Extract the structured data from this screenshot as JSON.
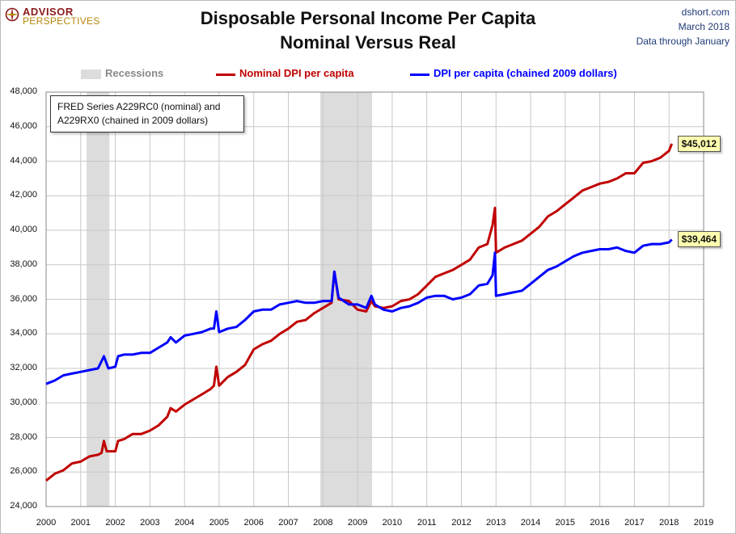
{
  "brand": {
    "line1": "ADVISOR",
    "line2": "PERSPECTIVES"
  },
  "source": {
    "site": "dshort.com",
    "date": "March 2018",
    "through": "Data through January"
  },
  "colors": {
    "nominal": "#c00000",
    "real": "#0000ff",
    "recession": "#dcdcdc",
    "grid": "#c8c8c8"
  },
  "chart_data": {
    "type": "line",
    "title": "Disposable Personal Income Per Capita",
    "subtitle": "Nominal Versus Real",
    "annotation": "FRED Series A229RC0 (nominal) and A229RX0 (chained in 2009 dollars)",
    "annotation_lines": [
      "FRED Series A229RC0 (nominal) and",
      "A229RX0 (chained in 2009 dollars)"
    ],
    "legend": {
      "placement": "top",
      "recessions": "Recessions",
      "nominal": "Nominal DPI per capita",
      "real": "DPI per capita (chained 2009 dollars)"
    },
    "xlim": [
      2000,
      2019
    ],
    "ylim": [
      24000,
      48000
    ],
    "x_ticks": [
      "2000",
      "2001",
      "2002",
      "2003",
      "2004",
      "2005",
      "2006",
      "2007",
      "2008",
      "2009",
      "2010",
      "2011",
      "2012",
      "2013",
      "2014",
      "2015",
      "2016",
      "2017",
      "2018",
      "2019"
    ],
    "y_ticks": [
      "24,000",
      "26,000",
      "28,000",
      "30,000",
      "32,000",
      "34,000",
      "36,000",
      "38,000",
      "40,000",
      "42,000",
      "44,000",
      "46,000",
      "48,000"
    ],
    "grid": true,
    "recessions": [
      {
        "start": 2001.17,
        "end": 2001.83
      },
      {
        "start": 2007.92,
        "end": 2009.42
      }
    ],
    "series": [
      {
        "name": "Nominal DPI per capita",
        "key": "nominal",
        "end_label": "$45,012",
        "points": [
          [
            2000.0,
            25500
          ],
          [
            2000.25,
            25900
          ],
          [
            2000.5,
            26100
          ],
          [
            2000.75,
            26500
          ],
          [
            2001.0,
            26600
          ],
          [
            2001.25,
            26900
          ],
          [
            2001.5,
            27000
          ],
          [
            2001.6,
            27100
          ],
          [
            2001.67,
            27800
          ],
          [
            2001.75,
            27200
          ],
          [
            2002.0,
            27200
          ],
          [
            2002.08,
            27800
          ],
          [
            2002.25,
            27900
          ],
          [
            2002.5,
            28200
          ],
          [
            2002.75,
            28200
          ],
          [
            2003.0,
            28400
          ],
          [
            2003.25,
            28700
          ],
          [
            2003.5,
            29200
          ],
          [
            2003.6,
            29700
          ],
          [
            2003.75,
            29500
          ],
          [
            2004.0,
            29900
          ],
          [
            2004.25,
            30200
          ],
          [
            2004.5,
            30500
          ],
          [
            2004.75,
            30800
          ],
          [
            2004.85,
            31000
          ],
          [
            2004.92,
            32100
          ],
          [
            2005.0,
            31000
          ],
          [
            2005.25,
            31500
          ],
          [
            2005.5,
            31800
          ],
          [
            2005.75,
            32200
          ],
          [
            2006.0,
            33100
          ],
          [
            2006.25,
            33400
          ],
          [
            2006.5,
            33600
          ],
          [
            2006.75,
            34000
          ],
          [
            2007.0,
            34300
          ],
          [
            2007.25,
            34700
          ],
          [
            2007.5,
            34800
          ],
          [
            2007.75,
            35200
          ],
          [
            2008.0,
            35500
          ],
          [
            2008.25,
            35800
          ],
          [
            2008.33,
            37600
          ],
          [
            2008.45,
            36000
          ],
          [
            2008.75,
            35900
          ],
          [
            2009.0,
            35400
          ],
          [
            2009.25,
            35300
          ],
          [
            2009.4,
            35900
          ],
          [
            2009.5,
            35600
          ],
          [
            2009.75,
            35500
          ],
          [
            2010.0,
            35600
          ],
          [
            2010.25,
            35900
          ],
          [
            2010.5,
            36000
          ],
          [
            2010.75,
            36300
          ],
          [
            2011.0,
            36800
          ],
          [
            2011.25,
            37300
          ],
          [
            2011.5,
            37500
          ],
          [
            2011.75,
            37700
          ],
          [
            2012.0,
            38000
          ],
          [
            2012.25,
            38300
          ],
          [
            2012.5,
            39000
          ],
          [
            2012.75,
            39200
          ],
          [
            2012.9,
            40300
          ],
          [
            2012.97,
            41300
          ],
          [
            2013.0,
            38700
          ],
          [
            2013.25,
            39000
          ],
          [
            2013.5,
            39200
          ],
          [
            2013.75,
            39400
          ],
          [
            2014.0,
            39800
          ],
          [
            2014.25,
            40200
          ],
          [
            2014.5,
            40800
          ],
          [
            2014.75,
            41100
          ],
          [
            2015.0,
            41500
          ],
          [
            2015.25,
            41900
          ],
          [
            2015.5,
            42300
          ],
          [
            2015.75,
            42500
          ],
          [
            2016.0,
            42700
          ],
          [
            2016.25,
            42800
          ],
          [
            2016.5,
            43000
          ],
          [
            2016.75,
            43300
          ],
          [
            2017.0,
            43300
          ],
          [
            2017.25,
            43900
          ],
          [
            2017.5,
            44000
          ],
          [
            2017.75,
            44200
          ],
          [
            2018.0,
            44600
          ],
          [
            2018.08,
            45012
          ]
        ]
      },
      {
        "name": "DPI per capita (chained 2009 dollars)",
        "key": "real",
        "end_label": "$39,464",
        "points": [
          [
            2000.0,
            31100
          ],
          [
            2000.25,
            31300
          ],
          [
            2000.5,
            31600
          ],
          [
            2000.75,
            31700
          ],
          [
            2001.0,
            31800
          ],
          [
            2001.25,
            31900
          ],
          [
            2001.5,
            32000
          ],
          [
            2001.67,
            32700
          ],
          [
            2001.8,
            32000
          ],
          [
            2002.0,
            32100
          ],
          [
            2002.08,
            32700
          ],
          [
            2002.25,
            32800
          ],
          [
            2002.5,
            32800
          ],
          [
            2002.75,
            32900
          ],
          [
            2003.0,
            32900
          ],
          [
            2003.25,
            33200
          ],
          [
            2003.5,
            33500
          ],
          [
            2003.6,
            33800
          ],
          [
            2003.75,
            33500
          ],
          [
            2004.0,
            33900
          ],
          [
            2004.25,
            34000
          ],
          [
            2004.5,
            34100
          ],
          [
            2004.75,
            34300
          ],
          [
            2004.85,
            34300
          ],
          [
            2004.92,
            35300
          ],
          [
            2005.0,
            34100
          ],
          [
            2005.25,
            34300
          ],
          [
            2005.5,
            34400
          ],
          [
            2005.75,
            34800
          ],
          [
            2006.0,
            35300
          ],
          [
            2006.25,
            35400
          ],
          [
            2006.5,
            35400
          ],
          [
            2006.75,
            35700
          ],
          [
            2007.0,
            35800
          ],
          [
            2007.25,
            35900
          ],
          [
            2007.5,
            35800
          ],
          [
            2007.75,
            35800
          ],
          [
            2008.0,
            35900
          ],
          [
            2008.25,
            35900
          ],
          [
            2008.33,
            37600
          ],
          [
            2008.45,
            36100
          ],
          [
            2008.75,
            35700
          ],
          [
            2009.0,
            35700
          ],
          [
            2009.25,
            35500
          ],
          [
            2009.4,
            36200
          ],
          [
            2009.5,
            35700
          ],
          [
            2009.75,
            35400
          ],
          [
            2010.0,
            35300
          ],
          [
            2010.25,
            35500
          ],
          [
            2010.5,
            35600
          ],
          [
            2010.75,
            35800
          ],
          [
            2011.0,
            36100
          ],
          [
            2011.25,
            36200
          ],
          [
            2011.5,
            36200
          ],
          [
            2011.75,
            36000
          ],
          [
            2012.0,
            36100
          ],
          [
            2012.25,
            36300
          ],
          [
            2012.5,
            36800
          ],
          [
            2012.75,
            36900
          ],
          [
            2012.9,
            37400
          ],
          [
            2012.97,
            38700
          ],
          [
            2013.0,
            36200
          ],
          [
            2013.25,
            36300
          ],
          [
            2013.5,
            36400
          ],
          [
            2013.75,
            36500
          ],
          [
            2014.0,
            36900
          ],
          [
            2014.25,
            37300
          ],
          [
            2014.5,
            37700
          ],
          [
            2014.75,
            37900
          ],
          [
            2015.0,
            38200
          ],
          [
            2015.25,
            38500
          ],
          [
            2015.5,
            38700
          ],
          [
            2015.75,
            38800
          ],
          [
            2016.0,
            38900
          ],
          [
            2016.25,
            38900
          ],
          [
            2016.5,
            39000
          ],
          [
            2016.75,
            38800
          ],
          [
            2017.0,
            38700
          ],
          [
            2017.25,
            39100
          ],
          [
            2017.5,
            39200
          ],
          [
            2017.75,
            39200
          ],
          [
            2018.0,
            39300
          ],
          [
            2018.08,
            39464
          ]
        ]
      }
    ]
  }
}
